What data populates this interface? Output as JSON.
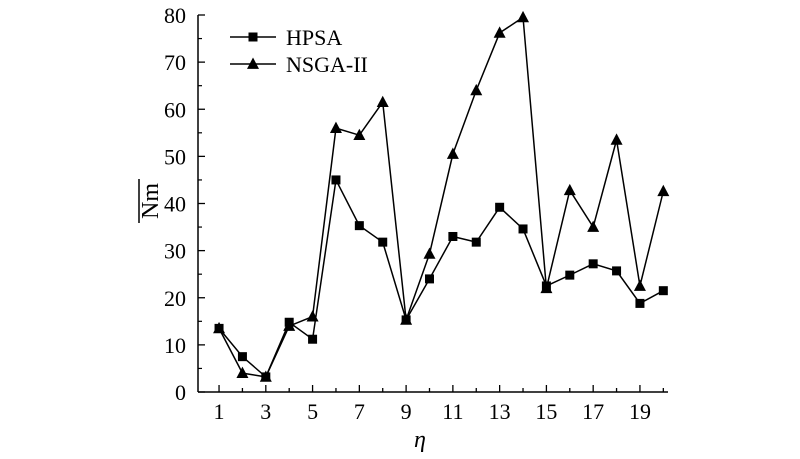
{
  "chart_data": {
    "type": "line",
    "x": [
      1,
      2,
      3,
      4,
      5,
      6,
      7,
      8,
      9,
      10,
      11,
      12,
      13,
      14,
      15,
      16,
      17,
      18,
      19,
      20
    ],
    "series": [
      {
        "name": "HPSA",
        "marker": "square",
        "values": [
          13.5,
          7.5,
          3.2,
          14.8,
          11.2,
          45,
          35.3,
          31.8,
          15.3,
          24,
          33,
          31.8,
          39.2,
          34.6,
          22.5,
          24.8,
          27.2,
          25.7,
          18.8,
          21.5
        ]
      },
      {
        "name": "NSGA-II",
        "marker": "triangle",
        "values": [
          13.5,
          4,
          3.2,
          14,
          16,
          56,
          54.5,
          61.5,
          15.3,
          29.3,
          50.5,
          64,
          76.2,
          79.5,
          22,
          42.8,
          35,
          53.5,
          22.5,
          42.6
        ]
      }
    ],
    "xlabel": "η",
    "ylabel": "Nm",
    "xlim": [
      0.1,
      20.2
    ],
    "ylim": [
      0,
      80
    ],
    "x_ticks": [
      "1",
      "3",
      "5",
      "7",
      "9",
      "11",
      "13",
      "15",
      "17",
      "19"
    ],
    "y_ticks": [
      "0",
      "10",
      "20",
      "30",
      "40",
      "50",
      "60",
      "70",
      "80"
    ],
    "legend_position": "top-left",
    "grid": false,
    "colors": {
      "line": "#000000",
      "background": "#ffffff"
    }
  }
}
